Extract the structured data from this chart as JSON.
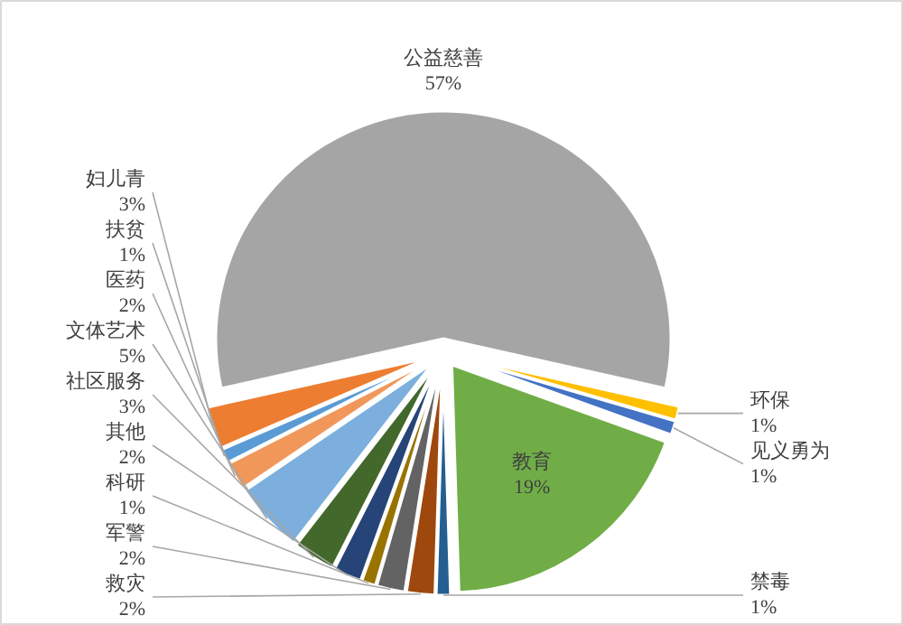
{
  "chart_data": {
    "type": "pie",
    "categories": [
      "公益慈善",
      "环保",
      "见义勇为",
      "教育",
      "禁毒",
      "救灾",
      "军警",
      "科研",
      "其他",
      "社区服务",
      "文体艺术",
      "医药",
      "扶贫",
      "妇儿青"
    ],
    "values": [
      57,
      1,
      1,
      19,
      1,
      2,
      2,
      1,
      2,
      3,
      5,
      2,
      1,
      3
    ],
    "value_labels": [
      "57%",
      "1%",
      "1%",
      "19%",
      "1%",
      "2%",
      "2%",
      "1%",
      "2%",
      "3%",
      "5%",
      "2%",
      "1%",
      "3%"
    ],
    "colors": [
      "#a5a5a5",
      "#ffc000",
      "#4472c4",
      "#70ad47",
      "#255e91",
      "#9e480e",
      "#636363",
      "#997300",
      "#264478",
      "#43682b",
      "#7cafdd",
      "#f1975a",
      "#5b9bd5",
      "#ed7d31"
    ]
  }
}
